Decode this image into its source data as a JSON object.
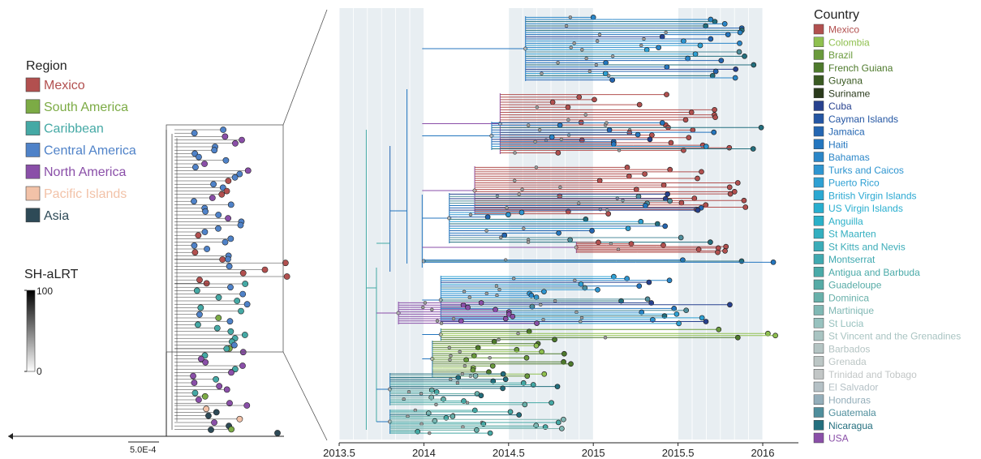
{
  "region_legend": {
    "title": "Region",
    "items": [
      {
        "label": "Mexico",
        "color": "#b2504f"
      },
      {
        "label": "South America",
        "color": "#7cab45"
      },
      {
        "label": "Caribbean",
        "color": "#45a9a5"
      },
      {
        "label": "Central America",
        "color": "#4f82c8"
      },
      {
        "label": "North America",
        "color": "#8a4fa8"
      },
      {
        "label": "Pacific Islands",
        "color": "#f2c2a8"
      },
      {
        "label": "Asia",
        "color": "#2e4a57"
      }
    ]
  },
  "support_legend": {
    "title": "SH-aLRT",
    "max_label": "100",
    "min_label": "0"
  },
  "scale_bar": {
    "label": "5.0E-4"
  },
  "country_legend": {
    "title": "Country",
    "items": [
      {
        "label": "Mexico",
        "color": "#b2504f"
      },
      {
        "label": "Colombia",
        "color": "#8fc04f"
      },
      {
        "label": "Brazil",
        "color": "#6a9a3c"
      },
      {
        "label": "French Guiana",
        "color": "#4e7a2c"
      },
      {
        "label": "Guyana",
        "color": "#3a5a22"
      },
      {
        "label": "Suriname",
        "color": "#2a3a1c"
      },
      {
        "label": "Cuba",
        "color": "#27418f"
      },
      {
        "label": "Cayman Islands",
        "color": "#2456a3"
      },
      {
        "label": "Jamaica",
        "color": "#2466b2"
      },
      {
        "label": "Haiti",
        "color": "#2476bf"
      },
      {
        "label": "Bahamas",
        "color": "#2a86c8"
      },
      {
        "label": "Turks and Caicos",
        "color": "#2e95d0"
      },
      {
        "label": "Puerto Rico",
        "color": "#2ea0d3"
      },
      {
        "label": "British Virgin Islands",
        "color": "#2aa8d2"
      },
      {
        "label": "US Virgin Islands",
        "color": "#28aecf"
      },
      {
        "label": "Anguilla",
        "color": "#2ab0c8"
      },
      {
        "label": "St Maarten",
        "color": "#33afc0"
      },
      {
        "label": "St Kitts and Nevis",
        "color": "#3bacb8"
      },
      {
        "label": "Montserrat",
        "color": "#40a9b0"
      },
      {
        "label": "Antigua and Barbuda",
        "color": "#4aaaa8"
      },
      {
        "label": "Guadeloupe",
        "color": "#56aba6"
      },
      {
        "label": "Dominica",
        "color": "#68b0aa"
      },
      {
        "label": "Martinique",
        "color": "#80b8b4"
      },
      {
        "label": "St Lucia",
        "color": "#98c2bf"
      },
      {
        "label": "St Vincent and the Grenadines",
        "color": "#a9c4c2"
      },
      {
        "label": "Barbados",
        "color": "#b4c4c3"
      },
      {
        "label": "Grenada",
        "color": "#bcc6c5"
      },
      {
        "label": "Trinidad and Tobago",
        "color": "#c2c6c6"
      },
      {
        "label": "El Salvador",
        "color": "#b5c1c6"
      },
      {
        "label": "Honduras",
        "color": "#94aeba"
      },
      {
        "label": "Guatemala",
        "color": "#4f8e9c"
      },
      {
        "label": "Nicaragua",
        "color": "#236f7e"
      },
      {
        "label": "USA",
        "color": "#8a4fa8"
      }
    ]
  },
  "time_axis": {
    "ticks": [
      "2013.5",
      "2014",
      "2014.5",
      "2015",
      "2015.5",
      "2016"
    ],
    "shaded_years": [
      "2014",
      "2015"
    ]
  }
}
